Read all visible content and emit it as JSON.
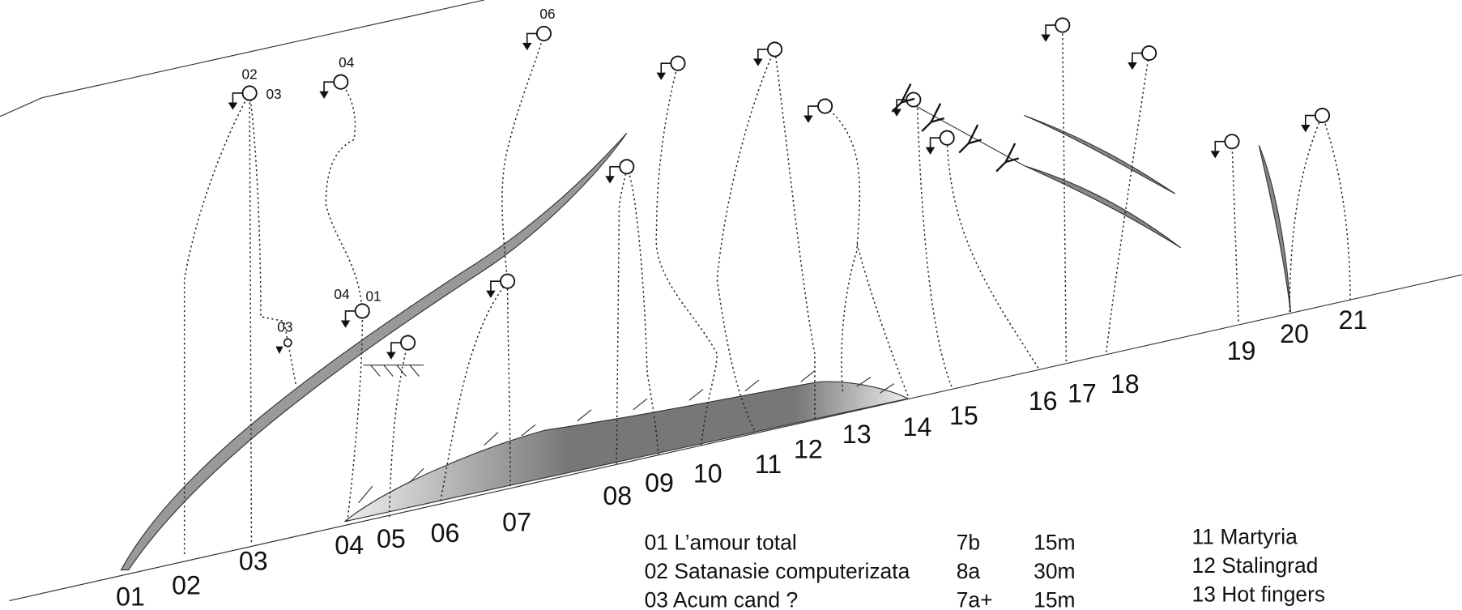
{
  "base_labels": [
    "01",
    "02",
    "03",
    "04",
    "05",
    "06",
    "07",
    "08",
    "09",
    "10",
    "11",
    "12",
    "13",
    "14",
    "15",
    "16",
    "17",
    "18",
    "19",
    "20",
    "21"
  ],
  "anchor_labels": [
    "02",
    "03",
    "04",
    "06",
    "04",
    "01",
    "03"
  ],
  "legend_left": [
    {
      "name": "01 L’amour total",
      "grade": "7b",
      "length": "15m"
    },
    {
      "name": "02 Satanasie computerizata",
      "grade": "8a",
      "length": "30m"
    },
    {
      "name": "03 Acum cand ?",
      "grade": "7a+",
      "length": "15m"
    }
  ],
  "legend_right": [
    "11 Martyria",
    "12 Stalingrad",
    "13 Hot fingers"
  ]
}
